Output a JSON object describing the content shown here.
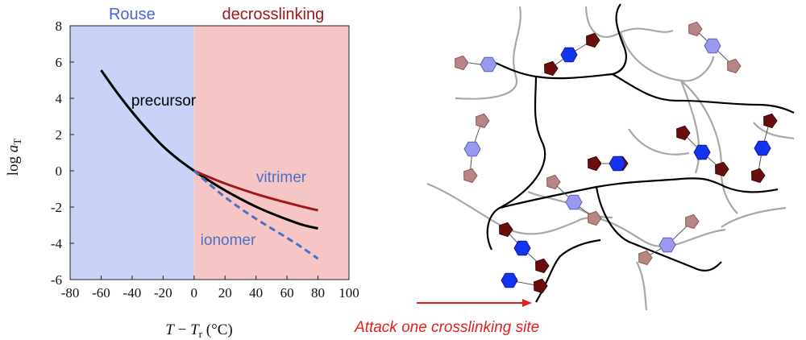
{
  "chart_data": {
    "type": "line",
    "xlabel_main": "T",
    "xlabel_sep": " − ",
    "xlabel_sub_var": "T",
    "xlabel_sub": "r",
    "xlabel_unit": " (°C)",
    "ylabel_main": "log ",
    "ylabel_var": "a",
    "ylabel_sub": "T",
    "xlim": [
      -80,
      100
    ],
    "ylim": [
      -6,
      8
    ],
    "xticks": [
      -80,
      -60,
      -40,
      -20,
      0,
      20,
      40,
      60,
      80,
      100
    ],
    "yticks": [
      -6,
      -4,
      -2,
      0,
      2,
      4,
      6,
      8
    ],
    "regions": [
      {
        "label": "Rouse",
        "x": [
          -80,
          0
        ],
        "fill": "#c9d2f7",
        "label_color": "#4a64dc"
      },
      {
        "label": "decrosslinking",
        "x": [
          0,
          100
        ],
        "fill": "#f6c5c5",
        "label_color": "#a01818"
      }
    ],
    "series": [
      {
        "name": "precursor",
        "color": "#000000",
        "dash": "solid",
        "x": [
          -60,
          -50,
          -40,
          -30,
          -20,
          -10,
          0,
          10,
          20,
          30,
          40,
          50,
          60,
          70,
          80
        ],
        "y": [
          5.55,
          4.35,
          3.25,
          2.25,
          1.35,
          0.62,
          0.0,
          -0.56,
          -1.08,
          -1.55,
          -1.98,
          -2.35,
          -2.68,
          -2.98,
          -3.18
        ]
      },
      {
        "name": "vitrimer",
        "color": "#a01818",
        "dash": "solid",
        "x": [
          0,
          10,
          20,
          30,
          40,
          50,
          60,
          70,
          80
        ],
        "y": [
          0.0,
          -0.36,
          -0.7,
          -1.0,
          -1.28,
          -1.53,
          -1.76,
          -1.98,
          -2.18
        ]
      },
      {
        "name": "ionomer",
        "color": "#4a72c4",
        "dash": "dashed",
        "x": [
          0,
          10,
          20,
          30,
          40,
          50,
          60,
          70,
          80
        ],
        "y": [
          0.0,
          -0.75,
          -1.45,
          -2.08,
          -2.65,
          -3.18,
          -3.7,
          -4.25,
          -4.85
        ]
      }
    ]
  },
  "arrow_caption": "Attack one crosslinking site",
  "colors": {
    "dark_red": "#6b0d0d",
    "pale_red": "#b78585",
    "blue": "#1434f0",
    "pale_blue": "#9999f0",
    "arrow": "#e0201a"
  }
}
